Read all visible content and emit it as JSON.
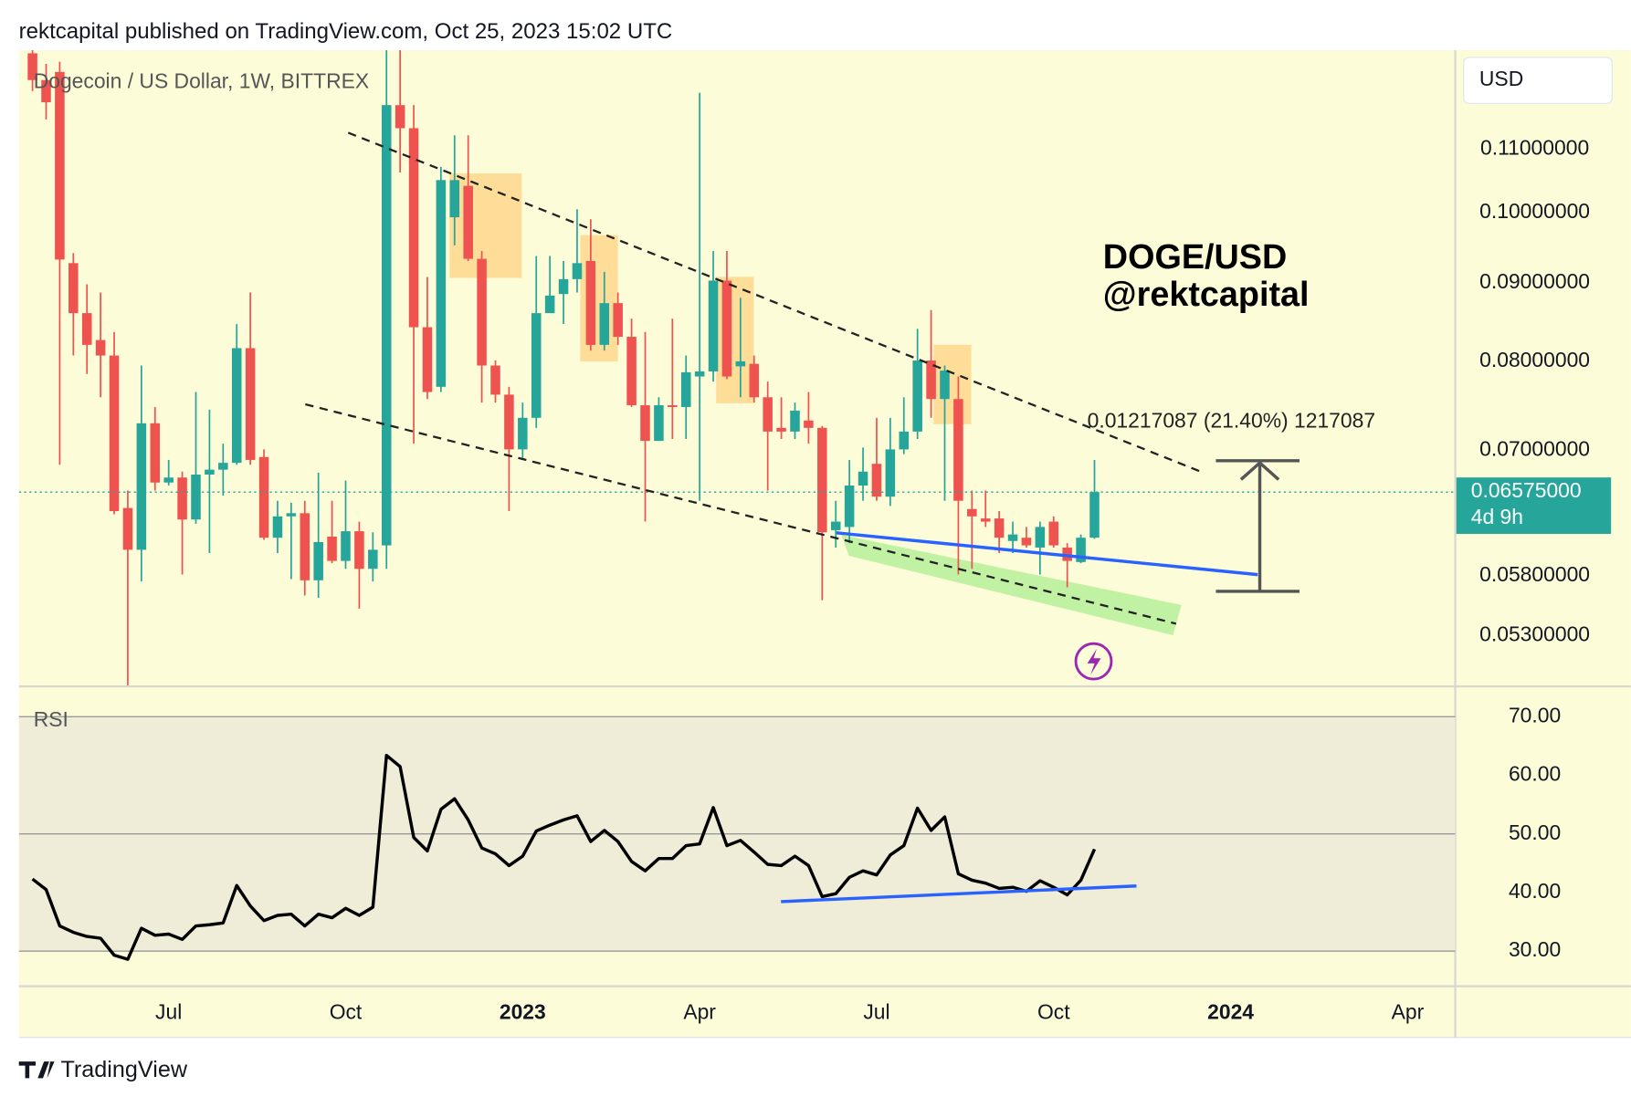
{
  "header": "rektcapital published on TradingView.com, Oct 25, 2023 15:02 UTC",
  "footer": "TradingView",
  "chart_data": [
    {
      "type": "candlestick",
      "title": "Dogecoin / US Dollar, 1W, BITTREX",
      "currency": "USD",
      "categories": [
        null,
        null,
        null,
        null,
        null,
        null,
        null,
        null,
        null,
        null,
        "Jul",
        null,
        null,
        null,
        null,
        null,
        null,
        null,
        null,
        null,
        null,
        null,
        null,
        "Oct",
        null,
        null,
        null,
        null,
        null,
        null,
        null,
        null,
        null,
        null,
        null,
        null,
        "2023",
        null,
        null,
        null,
        null,
        null,
        null,
        null,
        null,
        null,
        null,
        null,
        null,
        "Apr",
        null,
        null,
        null,
        null,
        null,
        null,
        null,
        null,
        null,
        null,
        null,
        null,
        "Jul",
        null,
        null,
        null,
        null,
        null,
        null,
        null,
        null,
        null,
        null,
        null,
        null,
        "Oct",
        null,
        null,
        null,
        null,
        null,
        null,
        null,
        null,
        null,
        null,
        null,
        null,
        "2024",
        null,
        null,
        null,
        null,
        null,
        null,
        null,
        null,
        null,
        null,
        null,
        null,
        "Apr",
        null,
        null,
        null
      ],
      "open": [
        0.127,
        0.122,
        0.1235,
        0.0927,
        0.086,
        0.0826,
        0.0807,
        0.0642,
        0.0603,
        0.0729,
        0.0667,
        0.0672,
        0.0631,
        0.0675,
        0.068,
        0.0687,
        0.0816,
        0.0693,
        0.0614,
        0.0634,
        0.0637,
        0.0576,
        0.0615,
        0.0593,
        0.062,
        0.0586,
        0.0607,
        0.1175,
        0.1135,
        0.0842,
        0.077,
        0.0993,
        0.1041,
        0.0933,
        0.0795,
        0.0761,
        0.0701,
        0.0735,
        0.086,
        0.0885,
        0.0905,
        0.093,
        0.082,
        0.0873,
        0.083,
        0.0749,
        0.071,
        0.0749,
        0.0747,
        0.0782,
        0.0788,
        0.0903,
        0.0794,
        0.0797,
        0.0758,
        0.0724,
        0.072,
        0.0732,
        0.0724,
        0.0621,
        0.0624,
        0.0664,
        0.0686,
        0.0653,
        0.0701,
        0.072,
        0.0801,
        0.0756,
        0.0756,
        0.0641,
        0.0632,
        0.0632,
        0.0611,
        0.0614,
        0.0605,
        0.0629,
        0.0605,
        0.0592,
        0.0614,
        null,
        null,
        null,
        null,
        null,
        null,
        null,
        null,
        null,
        null,
        null,
        null,
        null,
        null,
        null,
        null,
        null,
        null,
        null,
        null,
        null,
        null,
        null,
        null,
        null,
        null
      ],
      "high": [
        0.1276,
        0.125,
        0.1254,
        0.0941,
        0.0898,
        0.0887,
        0.0836,
        0.0659,
        0.0795,
        0.0747,
        0.069,
        0.0678,
        0.0764,
        0.0744,
        0.0707,
        0.0846,
        0.0887,
        0.0701,
        0.0649,
        0.0647,
        0.0649,
        0.0677,
        0.0649,
        0.0669,
        0.0629,
        0.0619,
        0.1276,
        0.1276,
        0.1175,
        0.0908,
        0.1071,
        0.1123,
        0.1123,
        0.0944,
        0.0801,
        0.077,
        0.0752,
        0.0937,
        0.0937,
        0.093,
        0.1005,
        0.099,
        0.0915,
        0.0887,
        0.0853,
        0.0836,
        0.0758,
        0.0853,
        0.0807,
        0.1197,
        0.0944,
        0.0944,
        0.088,
        0.0807,
        0.0776,
        0.0758,
        0.0752,
        0.0764,
        0.0726,
        0.0649,
        0.069,
        0.0703,
        0.0735,
        0.0735,
        0.0758,
        0.084,
        0.0864,
        0.0795,
        0.0782,
        0.0659,
        0.0659,
        0.0639,
        0.0629,
        0.0624,
        0.0629,
        0.0634,
        0.0609,
        0.0617,
        0.069,
        null,
        null,
        null,
        null,
        null,
        null,
        null,
        null,
        null,
        null,
        null,
        null,
        null,
        null,
        null,
        null,
        null,
        null,
        null,
        null,
        null,
        null,
        null,
        null,
        null,
        null
      ],
      "low": [
        0.12,
        0.115,
        0.0685,
        0.0807,
        0.0785,
        0.0758,
        0.0636,
        0.0492,
        0.0575,
        0.0659,
        0.0664,
        0.0581,
        0.0627,
        0.06,
        0.0654,
        0.0685,
        0.0685,
        0.0612,
        0.06,
        0.0577,
        0.0563,
        0.0561,
        0.0591,
        0.0586,
        0.0552,
        0.0575,
        0.0586,
        0.1062,
        0.0707,
        0.0756,
        0.0764,
        0.0952,
        0.093,
        0.0752,
        0.0752,
        0.0639,
        0.069,
        0.0724,
        0.086,
        0.0846,
        0.0887,
        0.0813,
        0.0813,
        0.082,
        0.0747,
        0.0629,
        0.071,
        0.0712,
        0.0712,
        0.0649,
        0.0776,
        0.0779,
        0.0758,
        0.0752,
        0.0659,
        0.0712,
        0.0712,
        0.0707,
        0.0559,
        0.0605,
        0.0609,
        0.0649,
        0.0649,
        0.0644,
        0.0696,
        0.0712,
        0.0735,
        0.0649,
        0.0581,
        0.0586,
        0.0624,
        0.06,
        0.06,
        0.0605,
        0.0581,
        0.0605,
        0.057,
        0.0591,
        0.0613,
        null,
        null,
        null,
        null,
        null,
        null,
        null,
        null,
        null,
        null,
        null,
        null,
        null,
        null,
        null,
        null,
        null,
        null,
        null,
        null,
        null,
        null,
        null,
        null,
        null,
        null
      ],
      "close": [
        0.122,
        0.118,
        0.0932,
        0.086,
        0.082,
        0.0807,
        0.0639,
        0.0603,
        0.0729,
        0.0667,
        0.0672,
        0.0631,
        0.0675,
        0.068,
        0.0687,
        0.0816,
        0.069,
        0.0614,
        0.0634,
        0.0637,
        0.0576,
        0.061,
        0.0593,
        0.062,
        0.0586,
        0.0603,
        0.1175,
        0.1135,
        0.0842,
        0.0764,
        0.105,
        0.105,
        0.0933,
        0.0795,
        0.0761,
        0.0701,
        0.0735,
        0.086,
        0.0883,
        0.0905,
        0.0927,
        0.082,
        0.0873,
        0.083,
        0.0749,
        0.071,
        0.0749,
        0.0747,
        0.0787,
        0.0788,
        0.0903,
        0.0782,
        0.08,
        0.0758,
        0.072,
        0.072,
        0.0743,
        0.0724,
        0.0619,
        0.0629,
        0.0664,
        0.0678,
        0.0653,
        0.0701,
        0.072,
        0.0801,
        0.0756,
        0.0789,
        0.0649,
        0.0634,
        0.0629,
        0.0614,
        0.0617,
        0.0607,
        0.0624,
        0.0607,
        0.0593,
        0.0614,
        0.06575,
        null,
        null,
        null,
        null,
        null,
        null,
        null,
        null,
        null,
        null,
        null,
        null,
        null,
        null,
        null,
        null,
        null,
        null,
        null,
        null,
        null,
        null,
        null,
        null,
        null,
        null
      ],
      "up_color": "#26a69a",
      "down_color": "#ef5350",
      "log_scale": true,
      "ylim": [
        0.0492,
        0.1276
      ],
      "yticks": [
        {
          "value": 0.053,
          "label": "0.05300000"
        },
        {
          "value": 0.058,
          "label": "0.05800000"
        },
        {
          "value": 0.07,
          "label": "0.07000000"
        },
        {
          "value": 0.08,
          "label": "0.08000000"
        },
        {
          "value": 0.09,
          "label": "0.09000000"
        },
        {
          "value": 0.1,
          "label": "0.10000000"
        },
        {
          "value": 0.11,
          "label": "0.11000000"
        }
      ],
      "grid": false,
      "last_price": {
        "value": 0.06575,
        "label": "0.06575000",
        "countdown": "4d 9h",
        "color": "#26a69a"
      },
      "annotations": {
        "label": "DOGE/USD",
        "author": "@rektcapital",
        "measure": "0.01217087 (21.40%) 1217087"
      }
    },
    {
      "type": "line",
      "title": "RSI",
      "values": [
        42.3,
        40.5,
        34.3,
        33.2,
        32.5,
        32.2,
        29.3,
        28.6,
        33.9,
        32.7,
        32.9,
        32.0,
        34.3,
        34.5,
        34.8,
        41.2,
        37.7,
        35.2,
        36.1,
        36.3,
        34.3,
        36.3,
        35.7,
        37.3,
        36.1,
        37.5,
        63.4,
        61.5,
        49.4,
        47.1,
        54.2,
        56.0,
        52.4,
        47.6,
        46.6,
        44.6,
        46.2,
        50.5,
        51.5,
        52.4,
        53.1,
        48.7,
        50.6,
        48.7,
        45.3,
        43.7,
        45.8,
        45.8,
        48.0,
        48.3,
        54.5,
        48.0,
        48.9,
        46.9,
        44.8,
        44.6,
        46.2,
        44.6,
        39.3,
        39.8,
        42.6,
        43.7,
        43.0,
        46.4,
        48.0,
        54.4,
        50.6,
        52.9,
        43.2,
        42.1,
        41.6,
        40.7,
        40.9,
        40.2,
        42.0,
        40.9,
        39.6,
        42.1,
        47.4,
        null,
        null,
        null,
        null,
        null,
        null,
        null,
        null,
        null,
        null,
        null,
        null,
        null,
        null,
        null,
        null,
        null,
        null,
        null,
        null,
        null,
        null,
        null,
        null,
        null,
        null
      ],
      "color": "#000000",
      "ylim": [
        24,
        75
      ],
      "yticks": [
        {
          "value": 30,
          "label": "30.00"
        },
        {
          "value": 40,
          "label": "40.00"
        },
        {
          "value": 50,
          "label": "50.00"
        },
        {
          "value": 60,
          "label": "60.00"
        },
        {
          "value": 70,
          "label": "70.00"
        }
      ],
      "levels": [
        30,
        50,
        70
      ]
    }
  ]
}
